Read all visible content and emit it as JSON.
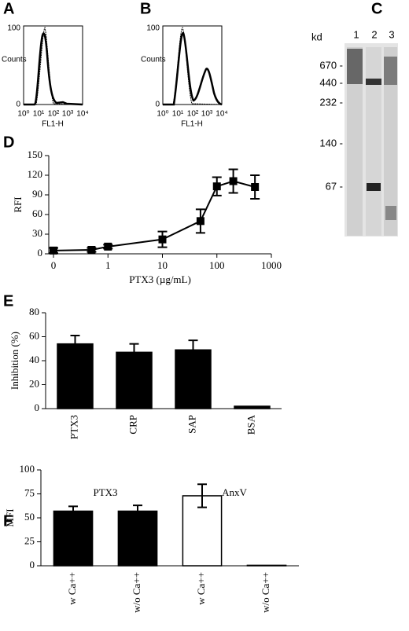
{
  "panel_labels": [
    "A",
    "B",
    "C",
    "D",
    "E",
    "F"
  ],
  "flow": {
    "y_label": "Counts",
    "x_label": "FL1-H",
    "yticks": [
      "0",
      "100"
    ],
    "xticks": [
      "10⁰",
      "10¹",
      "10²",
      "10³",
      "10⁴"
    ]
  },
  "gel": {
    "unit": "kd",
    "lanes": [
      "1",
      "2",
      "3"
    ],
    "markers": [
      "670 -",
      "440 -",
      "232 -",
      "140 -",
      "67 -"
    ]
  },
  "chart_data": [
    {
      "type": "line",
      "x_label": "PTX3 (µg/mL)",
      "y_label": "RFI",
      "log_x": true,
      "x": [
        0.1,
        0.5,
        1,
        10,
        50,
        100,
        200,
        500
      ],
      "series": [
        {
          "color": "#000000",
          "values": [
            5,
            6,
            11,
            22,
            50,
            103,
            111,
            102
          ],
          "errors": [
            4,
            3,
            3,
            12,
            18,
            14,
            18,
            18
          ]
        }
      ],
      "error_direction": "both",
      "xlim": [
        0.1,
        1000
      ],
      "xticks": [
        {
          "value": 0.1,
          "label": "0"
        },
        1,
        10,
        100,
        1000
      ],
      "ylim": [
        0,
        150
      ],
      "yticks": [
        0,
        30,
        60,
        90,
        120,
        150
      ]
    },
    {
      "type": "bar",
      "y_label": "Inhibition (%)",
      "categories": [
        "PTX3",
        "CRP",
        "SAP",
        "BSA"
      ],
      "values": [
        54,
        47,
        49,
        2
      ],
      "errors": [
        7,
        7,
        8,
        0
      ],
      "colors": [
        "#000000",
        "#000000",
        "#000000",
        "#000000"
      ],
      "error_direction": "up",
      "ylim": [
        0,
        80
      ],
      "yticks": [
        0,
        20,
        40,
        60,
        80
      ]
    },
    {
      "type": "bar",
      "y_label": "MFI",
      "categories": [
        "w Ca++",
        "w/o Ca++",
        "w Ca++",
        "w/o Ca++"
      ],
      "groups": [
        "PTX3",
        "AnxV"
      ],
      "values": [
        57,
        57,
        73,
        0.5
      ],
      "errors": [
        5,
        6,
        12,
        0
      ],
      "colors": [
        "#000000",
        "#000000",
        "#ffffff",
        "#ffffff"
      ],
      "error_direction": "both",
      "ylim": [
        0,
        100
      ],
      "yticks": [
        0,
        25,
        50,
        75,
        100
      ]
    }
  ]
}
